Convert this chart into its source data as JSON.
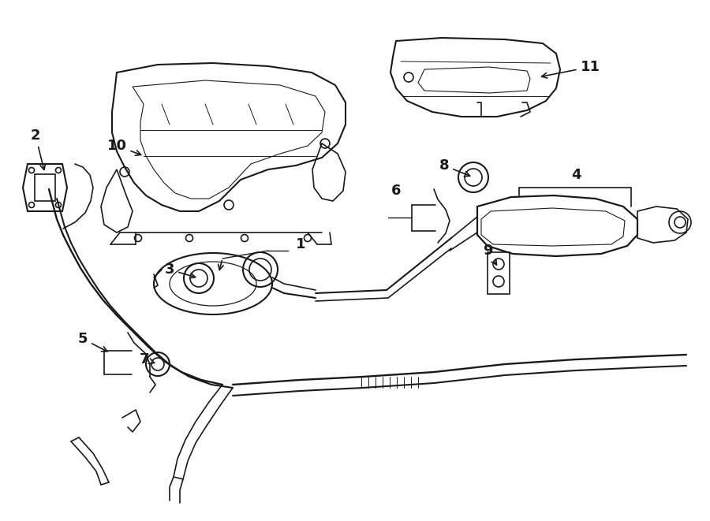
{
  "bg_color": "#ffffff",
  "line_color": "#1a1a1a",
  "lw": 1.2,
  "fig_w": 9.0,
  "fig_h": 6.61,
  "dpi": 100
}
